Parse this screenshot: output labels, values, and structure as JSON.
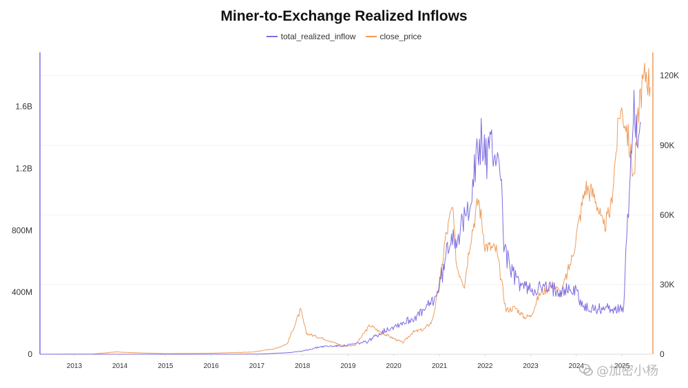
{
  "chart_data": {
    "type": "line",
    "title": "Miner-to-Exchange Realized Inflows",
    "legend_position": "top-center",
    "grid": true,
    "x": [
      "2013",
      "2014",
      "2015",
      "2016",
      "2017",
      "2018",
      "2019",
      "2020",
      "2021",
      "2022",
      "2023",
      "2024",
      "2025"
    ],
    "x_tick_labels": [
      "2013",
      "2014",
      "2015",
      "2016",
      "2017",
      "2018",
      "2019",
      "2020",
      "2021",
      "2022",
      "2023",
      "2024",
      "2025"
    ],
    "ylim_left": [
      0,
      1950000000
    ],
    "ylim_right": [
      0,
      130000
    ],
    "y_left_ticks": [
      {
        "value": 0,
        "label": "0"
      },
      {
        "value": 400000000,
        "label": "400M"
      },
      {
        "value": 800000000,
        "label": "800M"
      },
      {
        "value": 1200000000,
        "label": "1.2B"
      },
      {
        "value": 1600000000,
        "label": "1.6B"
      }
    ],
    "y_right_ticks": [
      {
        "value": 0,
        "label": "0"
      },
      {
        "value": 30000,
        "label": "30K"
      },
      {
        "value": 60000,
        "label": "60K"
      },
      {
        "value": 90000,
        "label": "90K"
      },
      {
        "value": 120000,
        "label": "120K"
      }
    ],
    "series": [
      {
        "name": "total_realized_inflow",
        "axis": "left",
        "color": "#7B6CE0",
        "points": [
          [
            "2012-04-01",
            0
          ],
          [
            "2013-06-01",
            0
          ],
          [
            "2014-06-01",
            0
          ],
          [
            "2015-06-01",
            0
          ],
          [
            "2016-06-01",
            0
          ],
          [
            "2017-03-01",
            2000000
          ],
          [
            "2017-09-01",
            10000000
          ],
          [
            "2018-01-01",
            20000000
          ],
          [
            "2018-06-01",
            50000000
          ],
          [
            "2018-12-01",
            55000000
          ],
          [
            "2019-06-01",
            80000000
          ],
          [
            "2019-09-01",
            130000000
          ],
          [
            "2019-12-01",
            170000000
          ],
          [
            "2020-03-01",
            200000000
          ],
          [
            "2020-06-01",
            230000000
          ],
          [
            "2020-09-01",
            280000000
          ],
          [
            "2020-12-01",
            370000000
          ],
          [
            "2021-02-01",
            540000000
          ],
          [
            "2021-04-01",
            780000000
          ],
          [
            "2021-06-01",
            760000000
          ],
          [
            "2021-08-01",
            880000000
          ],
          [
            "2021-10-01",
            1150000000
          ],
          [
            "2021-12-01",
            1380000000
          ],
          [
            "2022-01-15",
            1280000000
          ],
          [
            "2022-03-01",
            1340000000
          ],
          [
            "2022-05-01",
            1250000000
          ],
          [
            "2022-06-01",
            720000000
          ],
          [
            "2022-07-15",
            560000000
          ],
          [
            "2022-09-01",
            490000000
          ],
          [
            "2022-11-01",
            440000000
          ],
          [
            "2023-01-01",
            420000000
          ],
          [
            "2023-04-01",
            430000000
          ],
          [
            "2023-07-01",
            420000000
          ],
          [
            "2023-10-01",
            420000000
          ],
          [
            "2024-01-01",
            410000000
          ],
          [
            "2024-03-01",
            300000000
          ],
          [
            "2024-06-01",
            290000000
          ],
          [
            "2024-09-01",
            300000000
          ],
          [
            "2024-12-01",
            290000000
          ],
          [
            "2025-01-15",
            280000000
          ],
          [
            "2025-02-01",
            700000000
          ],
          [
            "2025-03-01",
            1050000000
          ],
          [
            "2025-04-01",
            1650000000
          ],
          [
            "2025-05-01",
            1450000000
          ],
          [
            "2025-06-01",
            1500000000
          ]
        ]
      },
      {
        "name": "close_price",
        "axis": "right",
        "color": "#EE9A5A",
        "points": [
          [
            "2012-04-01",
            5
          ],
          [
            "2013-06-01",
            100
          ],
          [
            "2013-12-01",
            1000
          ],
          [
            "2014-06-01",
            600
          ],
          [
            "2015-01-01",
            250
          ],
          [
            "2016-01-01",
            430
          ],
          [
            "2016-12-01",
            950
          ],
          [
            "2017-06-01",
            2500
          ],
          [
            "2017-09-01",
            4500
          ],
          [
            "2017-12-17",
            19000
          ],
          [
            "2018-02-01",
            9000
          ],
          [
            "2018-04-01",
            8000
          ],
          [
            "2018-07-01",
            6500
          ],
          [
            "2018-11-01",
            4000
          ],
          [
            "2018-12-15",
            3500
          ],
          [
            "2019-03-01",
            4000
          ],
          [
            "2019-06-25",
            12500
          ],
          [
            "2019-09-01",
            10000
          ],
          [
            "2019-12-15",
            7200
          ],
          [
            "2020-03-15",
            5000
          ],
          [
            "2020-06-01",
            9500
          ],
          [
            "2020-09-01",
            10800
          ],
          [
            "2020-11-01",
            14000
          ],
          [
            "2021-01-01",
            29000
          ],
          [
            "2021-02-15",
            49000
          ],
          [
            "2021-04-14",
            63000
          ],
          [
            "2021-05-20",
            38000
          ],
          [
            "2021-07-20",
            30000
          ],
          [
            "2021-09-01",
            48000
          ],
          [
            "2021-11-10",
            67000
          ],
          [
            "2022-01-01",
            47000
          ],
          [
            "2022-04-01",
            45000
          ],
          [
            "2022-06-18",
            19000
          ],
          [
            "2022-09-01",
            20000
          ],
          [
            "2022-11-10",
            16000
          ],
          [
            "2023-01-01",
            16500
          ],
          [
            "2023-03-15",
            26000
          ],
          [
            "2023-07-01",
            30000
          ],
          [
            "2023-09-01",
            26000
          ],
          [
            "2023-12-01",
            42000
          ],
          [
            "2024-03-14",
            72000
          ],
          [
            "2024-06-01",
            68000
          ],
          [
            "2024-08-05",
            54000
          ],
          [
            "2024-10-01",
            62000
          ],
          [
            "2024-12-17",
            106000
          ],
          [
            "2025-02-01",
            100000
          ],
          [
            "2025-04-07",
            76000
          ],
          [
            "2025-05-22",
            111000
          ],
          [
            "2025-07-14",
            122000
          ],
          [
            "2025-08-15",
            115000
          ]
        ]
      }
    ]
  },
  "watermark": {
    "icon": "wechat-icon",
    "text": "@加密小杨"
  }
}
